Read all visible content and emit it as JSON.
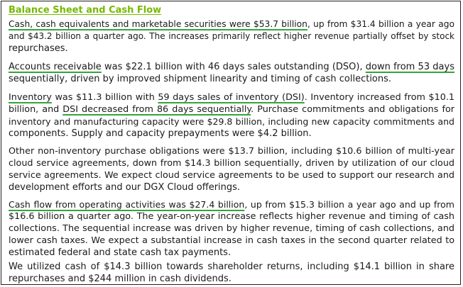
{
  "section": {
    "title": "Balance Sheet and Cash Flow"
  },
  "paragraphs": [
    {
      "lines": [
        {
          "segments": [
            {
              "text": "Cash, cash equivalents and marketable securities were $53.7 billion",
              "highlight": true
            },
            {
              "text": ", up from $31.4 billion a year ago",
              "highlight": false
            }
          ]
        },
        {
          "segments": [
            {
              "text": "and $43.2 billion a quarter ago. The increases primarily reflect higher revenue partially offset by stock",
              "highlight": false
            }
          ]
        },
        {
          "segments": [
            {
              "text": "repurchases.",
              "highlight": false
            }
          ]
        }
      ]
    },
    {
      "lines": [
        {
          "segments": [
            {
              "text": "Accounts receivable",
              "highlight": true
            },
            {
              "text": " was $22.1 billion with 46 days sales outstanding (DSO), ",
              "highlight": false
            },
            {
              "text": "down from 53 days",
              "highlight": true
            }
          ]
        },
        {
          "segments": [
            {
              "text": "sequentially, driven by improved shipment linearity and timing of cash collections.",
              "highlight": false
            }
          ]
        }
      ]
    },
    {
      "lines": [
        {
          "segments": [
            {
              "text": "Inventory",
              "highlight": true
            },
            {
              "text": " was $11.3 billion with ",
              "highlight": false
            },
            {
              "text": "59 days sales of inventory (DSI)",
              "highlight": true
            },
            {
              "text": ". Inventory increased from $10.1",
              "highlight": false
            }
          ]
        },
        {
          "segments": [
            {
              "text": "billion, and ",
              "highlight": false
            },
            {
              "text": "DSI decreased from 86 days sequentially",
              "highlight": true
            },
            {
              "text": ". Purchase commitments and obligations for",
              "highlight": false
            }
          ]
        },
        {
          "segments": [
            {
              "text": "inventory and manufacturing capacity were $29.8 billion, including new capacity commitments and",
              "highlight": false
            }
          ]
        },
        {
          "segments": [
            {
              "text": "components. Supply and capacity prepayments were $4.2 billion.",
              "highlight": false
            }
          ]
        }
      ]
    },
    {
      "lines": [
        {
          "segments": [
            {
              "text": "Other non-inventory purchase obligations were $13.7 billion, including $10.6 billion of multi-year",
              "highlight": false
            }
          ]
        },
        {
          "segments": [
            {
              "text": "cloud service agreements, down from $14.3 billion sequentially, driven by utilization of our cloud",
              "highlight": false
            }
          ]
        },
        {
          "segments": [
            {
              "text": "service agreements. We expect cloud service agreements to be used to support our research and",
              "highlight": false
            }
          ]
        },
        {
          "segments": [
            {
              "text": "development efforts and our DGX Cloud offerings.",
              "highlight": false
            }
          ]
        }
      ]
    },
    {
      "lines": [
        {
          "segments": [
            {
              "text": "Cash flow from operating activities was $27.4 billion",
              "highlight": true
            },
            {
              "text": ", up from $15.3 billion a year ago and up from",
              "highlight": false
            }
          ]
        },
        {
          "segments": [
            {
              "text": "$16.6 billion a quarter ago. The year-on-year increase reflects higher revenue and timing of cash",
              "highlight": false
            }
          ]
        },
        {
          "segments": [
            {
              "text": "collections. The sequential increase was driven by higher revenue, timing of cash collections, and",
              "highlight": false
            }
          ]
        },
        {
          "segments": [
            {
              "text": "lower cash taxes. We expect a substantial increase in cash taxes in the second quarter related to",
              "highlight": false
            }
          ]
        },
        {
          "segments": [
            {
              "text": "estimated federal and state cash tax payments.",
              "highlight": false
            }
          ]
        }
      ]
    },
    {
      "lines": [
        {
          "segments": [
            {
              "text": "We utilized cash of $14.3 billion towards shareholder returns, including $14.1 billion in share",
              "highlight": false
            }
          ]
        },
        {
          "segments": [
            {
              "text": "repurchases and $244 million in cash dividends.",
              "highlight": false
            }
          ]
        }
      ]
    }
  ]
}
